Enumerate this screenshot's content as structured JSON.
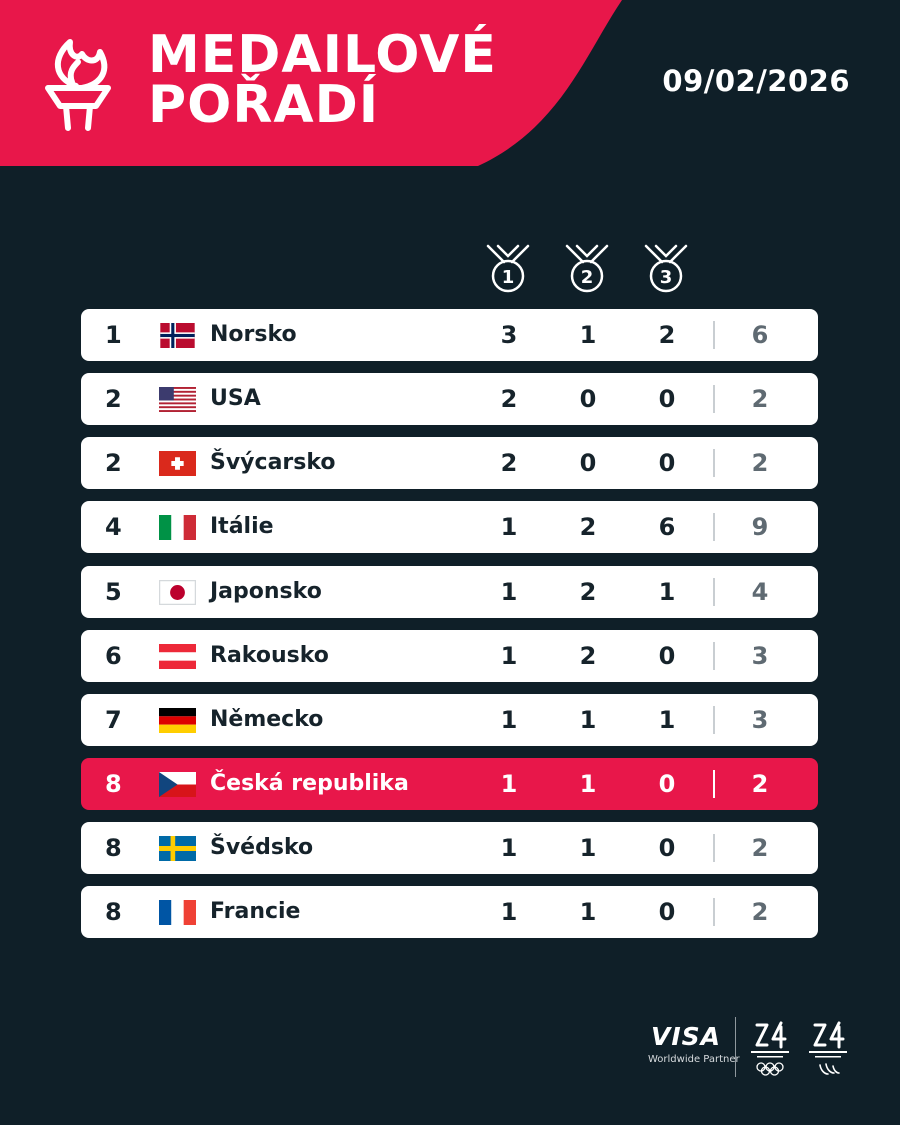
{
  "header": {
    "title_line1": "MEDAILOVÉ",
    "title_line2": "POŘADÍ",
    "date": "09/02/2026",
    "accent_color": "#e8174a",
    "background_color": "#0f1f28"
  },
  "medals": [
    "1",
    "2",
    "3"
  ],
  "rows": [
    {
      "rank": "1",
      "country": "Norsko",
      "flag": "flag-norway-icon",
      "gold": "3",
      "silver": "1",
      "bronze": "2",
      "total": "6"
    },
    {
      "rank": "2",
      "country": "USA",
      "flag": "flag-usa-icon",
      "gold": "2",
      "silver": "0",
      "bronze": "0",
      "total": "2"
    },
    {
      "rank": "2",
      "country": "Švýcarsko",
      "flag": "flag-switzerland-icon",
      "gold": "2",
      "silver": "0",
      "bronze": "0",
      "total": "2"
    },
    {
      "rank": "4",
      "country": "Itálie",
      "flag": "flag-italy-icon",
      "gold": "1",
      "silver": "2",
      "bronze": "6",
      "total": "9"
    },
    {
      "rank": "5",
      "country": "Japonsko",
      "flag": "flag-japan-icon",
      "gold": "1",
      "silver": "2",
      "bronze": "1",
      "total": "4"
    },
    {
      "rank": "6",
      "country": "Rakousko",
      "flag": "flag-austria-icon",
      "gold": "1",
      "silver": "2",
      "bronze": "0",
      "total": "3"
    },
    {
      "rank": "7",
      "country": "Německo",
      "flag": "flag-germany-icon",
      "gold": "1",
      "silver": "1",
      "bronze": "1",
      "total": "3"
    },
    {
      "rank": "8",
      "country": "Česká republika",
      "flag": "flag-czechia-icon",
      "gold": "1",
      "silver": "1",
      "bronze": "0",
      "total": "2"
    },
    {
      "rank": "8",
      "country": "Švédsko",
      "flag": "flag-sweden-icon",
      "gold": "1",
      "silver": "1",
      "bronze": "0",
      "total": "2"
    },
    {
      "rank": "8",
      "country": "Francie",
      "flag": "flag-france-icon",
      "gold": "1",
      "silver": "1",
      "bronze": "0",
      "total": "2"
    }
  ],
  "footer": {
    "sponsor": "VISA",
    "sponsor_sub": "Worldwide Partner",
    "olympic_logo": "milano-cortina-2026-olympic-logo",
    "paralympic_logo": "milano-cortina-2026-paralympic-logo"
  }
}
